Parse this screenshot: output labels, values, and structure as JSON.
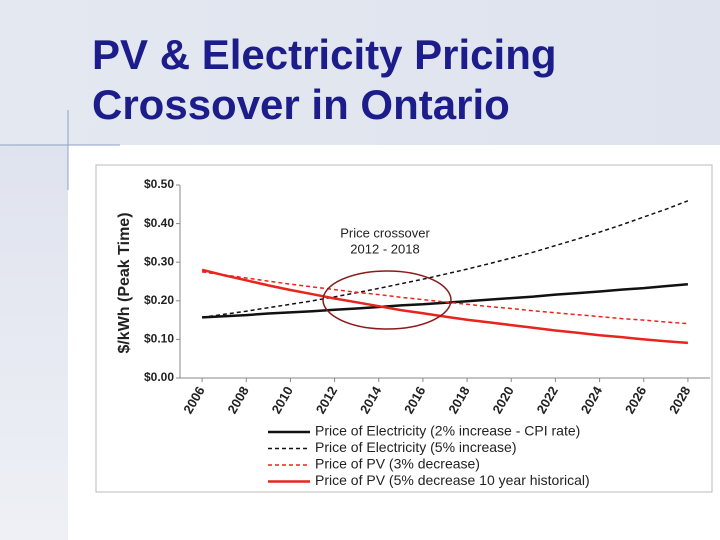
{
  "title": "PV & Electricity Pricing Crossover in Ontario",
  "chart_data": {
    "type": "line",
    "y_label": "$/kWh (Peak Time)",
    "annotation": [
      "Price crossover",
      "2012 - 2018"
    ],
    "x": [
      2006,
      2007,
      2008,
      2009,
      2010,
      2011,
      2012,
      2013,
      2014,
      2015,
      2016,
      2017,
      2018,
      2019,
      2020,
      2021,
      2022,
      2023,
      2024,
      2025,
      2026,
      2027,
      2028
    ],
    "xlim": [
      2005,
      2029
    ],
    "xticks": [
      2006,
      2008,
      2010,
      2012,
      2014,
      2016,
      2018,
      2020,
      2022,
      2024,
      2026,
      2028
    ],
    "ylim": [
      0,
      0.5
    ],
    "yticks": [
      {
        "value": 0,
        "label": "$0.00"
      },
      {
        "value": 0.1,
        "label": "$0.10"
      },
      {
        "value": 0.2,
        "label": "$0.20"
      },
      {
        "value": 0.3,
        "label": "$0.30"
      },
      {
        "value": 0.4,
        "label": "$0.40"
      },
      {
        "value": 0.5,
        "label": "$0.50"
      }
    ],
    "series": [
      {
        "name": "Price of Electricity (2% increase - CPI rate)",
        "color": "#111111",
        "style": "solid",
        "values": [
          0.157,
          0.16,
          0.163,
          0.167,
          0.17,
          0.173,
          0.177,
          0.18,
          0.184,
          0.188,
          0.191,
          0.195,
          0.199,
          0.203,
          0.207,
          0.211,
          0.216,
          0.22,
          0.224,
          0.229,
          0.233,
          0.238,
          0.243
        ]
      },
      {
        "name": "Price of Electricity (5% increase)",
        "color": "#111111",
        "style": "dotted",
        "values": [
          0.157,
          0.165,
          0.173,
          0.182,
          0.191,
          0.2,
          0.21,
          0.221,
          0.232,
          0.244,
          0.256,
          0.269,
          0.282,
          0.296,
          0.311,
          0.326,
          0.343,
          0.36,
          0.378,
          0.397,
          0.417,
          0.437,
          0.459
        ]
      },
      {
        "name": "Price of PV (3% decrease)",
        "color": "#e8241c",
        "style": "dotted",
        "values": [
          0.275,
          0.267,
          0.259,
          0.251,
          0.243,
          0.236,
          0.229,
          0.222,
          0.216,
          0.209,
          0.203,
          0.197,
          0.191,
          0.185,
          0.18,
          0.174,
          0.169,
          0.164,
          0.159,
          0.154,
          0.15,
          0.145,
          0.141
        ]
      },
      {
        "name": "Price of PV (5% decrease 10 year historical)",
        "color": "#e8241c",
        "style": "solid",
        "values": [
          0.28,
          0.266,
          0.253,
          0.24,
          0.228,
          0.217,
          0.206,
          0.196,
          0.186,
          0.176,
          0.168,
          0.159,
          0.151,
          0.144,
          0.137,
          0.13,
          0.123,
          0.117,
          0.111,
          0.106,
          0.1,
          0.095,
          0.091
        ]
      }
    ]
  }
}
